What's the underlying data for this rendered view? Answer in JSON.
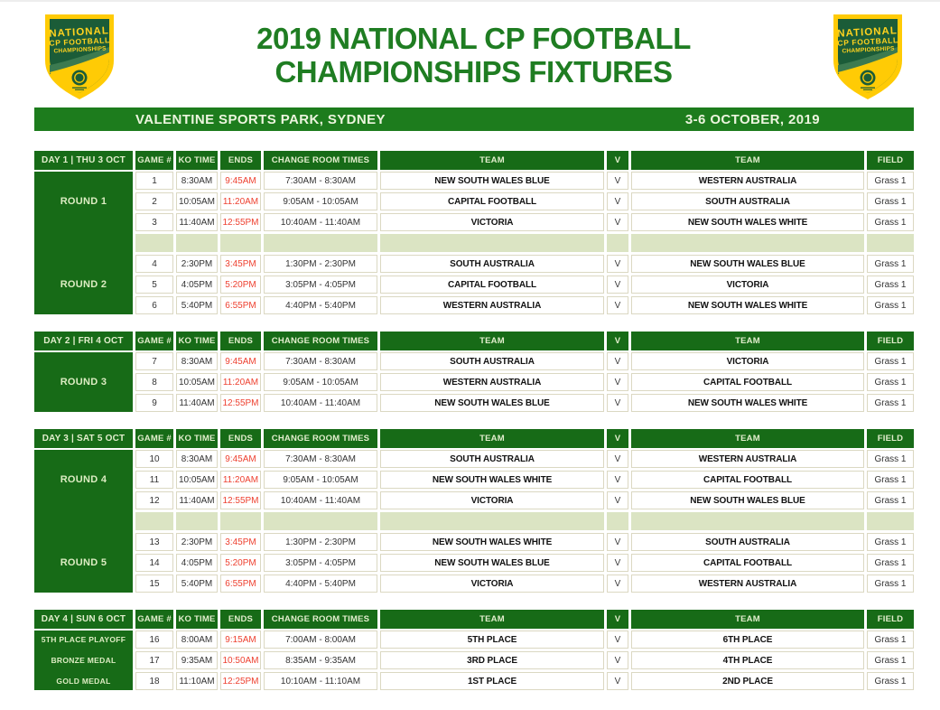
{
  "header": {
    "title_line1": "2019 NATIONAL CP FOOTBALL",
    "title_line2": "CHAMPIONSHIPS FIXTURES",
    "logo": {
      "line1": "NATIONAL",
      "line2": "CP FOOTBALL",
      "line3": "CHAMPIONSHIPS"
    }
  },
  "banner": {
    "venue": "VALENTINE SPORTS PARK, SYDNEY",
    "dates": "3-6 OCTOBER, 2019"
  },
  "columns": {
    "game": "GAME #",
    "ko": "KO TIME",
    "ends": "ENDS",
    "change_room": "CHANGE ROOM TIMES",
    "team": "TEAM",
    "v": "V",
    "field": "FIELD"
  },
  "colors": {
    "table_green": "#176b17",
    "banner_green": "#1d7c1d",
    "title_green": "#1f7d22",
    "separator_sage": "#dbe4c3",
    "ends_red": "#ee4130",
    "logo_yellow": "#ffcb05",
    "logo_inner_green": "#1b5c38"
  },
  "sections": [
    {
      "day_label": "DAY 1 | THU 3 OCT",
      "gap_rows": true,
      "groups": [
        {
          "label": "ROUND 1",
          "games": [
            {
              "num": "1",
              "ko": "8:30AM",
              "ends": "9:45AM",
              "change": "7:30AM - 8:30AM",
              "home": "NEW SOUTH WALES BLUE",
              "away": "WESTERN AUSTRALIA",
              "v": "V",
              "field": "Grass 1"
            },
            {
              "num": "2",
              "ko": "10:05AM",
              "ends": "11:20AM",
              "change": "9:05AM - 10:05AM",
              "home": "CAPITAL FOOTBALL",
              "away": "SOUTH AUSTRALIA",
              "v": "V",
              "field": "Grass 1"
            },
            {
              "num": "3",
              "ko": "11:40AM",
              "ends": "12:55PM",
              "change": "10:40AM - 11:40AM",
              "home": "VICTORIA",
              "away": "NEW SOUTH WALES WHITE",
              "v": "V",
              "field": "Grass 1"
            }
          ]
        },
        {
          "label": "ROUND 2",
          "games": [
            {
              "num": "4",
              "ko": "2:30PM",
              "ends": "3:45PM",
              "change": "1:30PM - 2:30PM",
              "home": "SOUTH AUSTRALIA",
              "away": "NEW SOUTH WALES BLUE",
              "v": "V",
              "field": "Grass 1"
            },
            {
              "num": "5",
              "ko": "4:05PM",
              "ends": "5:20PM",
              "change": "3:05PM - 4:05PM",
              "home": "CAPITAL FOOTBALL",
              "away": "VICTORIA",
              "v": "V",
              "field": "Grass 1"
            },
            {
              "num": "6",
              "ko": "5:40PM",
              "ends": "6:55PM",
              "change": "4:40PM - 5:40PM",
              "home": "WESTERN AUSTRALIA",
              "away": "NEW SOUTH WALES WHITE",
              "v": "V",
              "field": "Grass 1"
            }
          ]
        }
      ]
    },
    {
      "day_label": "DAY 2 | FRI 4 OCT",
      "gap_rows": false,
      "groups": [
        {
          "label": "ROUND 3",
          "games": [
            {
              "num": "7",
              "ko": "8:30AM",
              "ends": "9:45AM",
              "change": "7:30AM - 8:30AM",
              "home": "SOUTH AUSTRALIA",
              "away": "VICTORIA",
              "v": "V",
              "field": "Grass 1"
            },
            {
              "num": "8",
              "ko": "10:05AM",
              "ends": "11:20AM",
              "change": "9:05AM - 10:05AM",
              "home": "WESTERN AUSTRALIA",
              "away": "CAPITAL FOOTBALL",
              "v": "V",
              "field": "Grass 1"
            },
            {
              "num": "9",
              "ko": "11:40AM",
              "ends": "12:55PM",
              "change": "10:40AM - 11:40AM",
              "home": "NEW SOUTH WALES BLUE",
              "away": "NEW SOUTH WALES WHITE",
              "v": "V",
              "field": "Grass 1"
            }
          ]
        }
      ]
    },
    {
      "day_label": "DAY 3 | SAT 5 OCT",
      "gap_rows": true,
      "groups": [
        {
          "label": "ROUND 4",
          "games": [
            {
              "num": "10",
              "ko": "8:30AM",
              "ends": "9:45AM",
              "change": "7:30AM - 8:30AM",
              "home": "SOUTH AUSTRALIA",
              "away": "WESTERN AUSTRALIA",
              "v": "V",
              "field": "Grass 1"
            },
            {
              "num": "11",
              "ko": "10:05AM",
              "ends": "11:20AM",
              "change": "9:05AM - 10:05AM",
              "home": "NEW SOUTH WALES WHITE",
              "away": "CAPITAL FOOTBALL",
              "v": "V",
              "field": "Grass 1"
            },
            {
              "num": "12",
              "ko": "11:40AM",
              "ends": "12:55PM",
              "change": "10:40AM - 11:40AM",
              "home": "VICTORIA",
              "away": "NEW SOUTH WALES BLUE",
              "v": "V",
              "field": "Grass 1"
            }
          ]
        },
        {
          "label": "ROUND 5",
          "games": [
            {
              "num": "13",
              "ko": "2:30PM",
              "ends": "3:45PM",
              "change": "1:30PM - 2:30PM",
              "home": "NEW SOUTH WALES WHITE",
              "away": "SOUTH AUSTRALIA",
              "v": "V",
              "field": "Grass 1"
            },
            {
              "num": "14",
              "ko": "4:05PM",
              "ends": "5:20PM",
              "change": "3:05PM - 4:05PM",
              "home": "NEW SOUTH WALES BLUE",
              "away": "CAPITAL FOOTBALL",
              "v": "V",
              "field": "Grass 1"
            },
            {
              "num": "15",
              "ko": "5:40PM",
              "ends": "6:55PM",
              "change": "4:40PM - 5:40PM",
              "home": "VICTORIA",
              "away": "WESTERN AUSTRALIA",
              "v": "V",
              "field": "Grass 1"
            }
          ]
        }
      ]
    },
    {
      "day_label": "DAY 4 | SUN 6 OCT",
      "gap_rows": false,
      "groups": [
        {
          "label": "5TH PLACE PLAYOFF",
          "games": [
            {
              "num": "16",
              "ko": "8:00AM",
              "ends": "9:15AM",
              "change": "7:00AM - 8:00AM",
              "home": "5TH PLACE",
              "away": "6TH PLACE",
              "v": "V",
              "field": "Grass 1"
            }
          ]
        },
        {
          "label": "BRONZE MEDAL",
          "games": [
            {
              "num": "17",
              "ko": "9:35AM",
              "ends": "10:50AM",
              "change": "8:35AM - 9:35AM",
              "home": "3RD PLACE",
              "away": "4TH PLACE",
              "v": "V",
              "field": "Grass 1"
            }
          ]
        },
        {
          "label": "GOLD MEDAL",
          "games": [
            {
              "num": "18",
              "ko": "11:10AM",
              "ends": "12:25PM",
              "change": "10:10AM - 11:10AM",
              "home": "1ST PLACE",
              "away": "2ND PLACE",
              "v": "V",
              "field": "Grass 1"
            }
          ]
        }
      ]
    }
  ]
}
